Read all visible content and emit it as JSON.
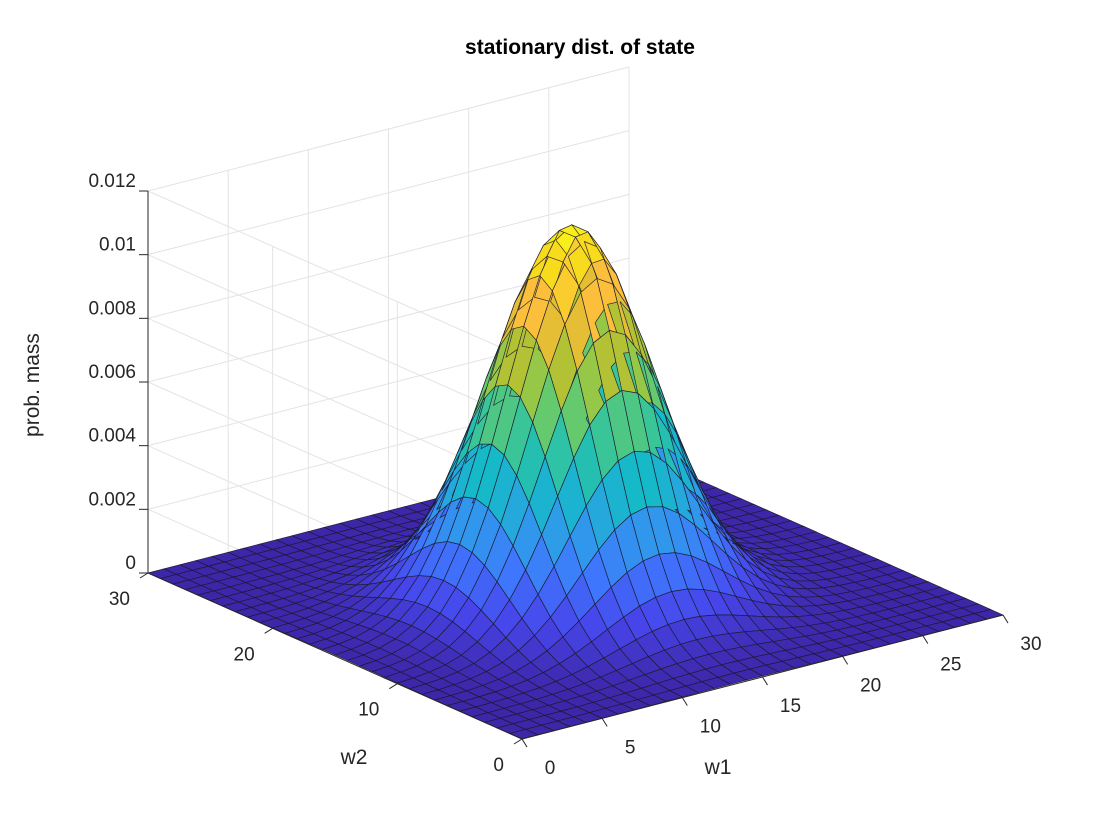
{
  "chart_data": {
    "type": "surface",
    "title": "stationary dist. of state",
    "xlabel": "w1",
    "ylabel": "w2",
    "zlabel": "prob. mass",
    "x_range": [
      0,
      30
    ],
    "y_range": [
      0,
      30
    ],
    "z_range": [
      0,
      0.012
    ],
    "x_ticks": [
      0,
      5,
      10,
      15,
      20,
      25,
      30
    ],
    "y_ticks": [
      0,
      10,
      20,
      30
    ],
    "z_ticks": [
      0,
      0.002,
      0.004,
      0.006,
      0.008,
      0.01,
      0.012
    ],
    "x_tick_labels": [
      "0",
      "5",
      "10",
      "15",
      "20",
      "25",
      "30"
    ],
    "y_tick_labels": [
      "0",
      "10",
      "20",
      "30"
    ],
    "z_tick_labels": [
      "0",
      "0.002",
      "0.004",
      "0.006",
      "0.008",
      "0.01",
      "0.012"
    ],
    "grid": true,
    "colormap": "parula",
    "colormap_stops": [
      "#3e26a8",
      "#4746eb",
      "#3f77fe",
      "#2e9ee8",
      "#15b9c7",
      "#35c59c",
      "#7bcb59",
      "#c4c029",
      "#fbbd3e",
      "#f9d81f",
      "#f9fb15"
    ],
    "surface": {
      "grid_points": 30,
      "peak": {
        "w1": 14,
        "w2": 14,
        "value": 0.0119
      },
      "std_w1": 4.1,
      "std_w2": 4.1
    }
  }
}
